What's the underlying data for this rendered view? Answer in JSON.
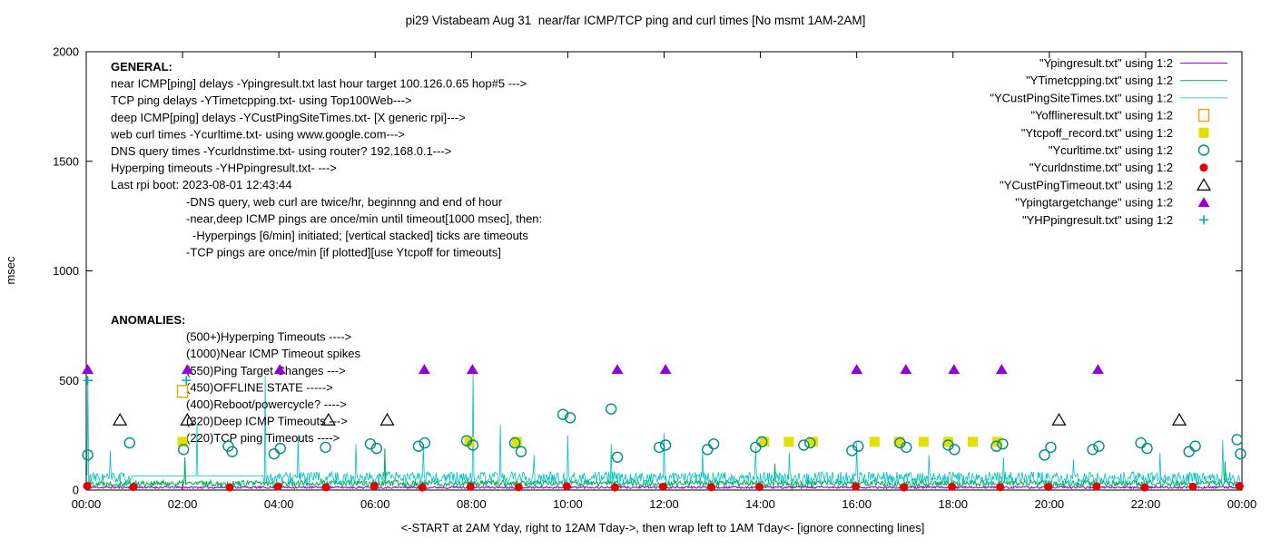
{
  "title": "pi29 Vistabeam Aug 31  near/far ICMP/TCP ping and curl times [No msmt 1AM-2AM]",
  "ylabel": "msec",
  "xlabel": "<-START at 2AM Yday, right to 12AM Tday->, then wrap left to 1AM Tday<- [ignore connecting lines]",
  "chart_data": {
    "type": "line",
    "x_range_hours": [
      0,
      24
    ],
    "x_ticks": [
      "00:00",
      "02:00",
      "04:00",
      "06:00",
      "08:00",
      "10:00",
      "12:00",
      "14:00",
      "16:00",
      "18:00",
      "20:00",
      "22:00",
      "00:00"
    ],
    "ylim": [
      0,
      2000
    ],
    "y_ticks": [
      0,
      500,
      1000,
      1500,
      2000
    ],
    "grid": false,
    "legend_position": "top-right",
    "series": [
      {
        "name": "\"Ypingresult.txt\" using 1:2",
        "style": "line",
        "color": "#9400d3",
        "stroke_width": 1.0,
        "synth": {
          "base": 12,
          "jitter": 5,
          "seed": 11,
          "spikes": []
        }
      },
      {
        "name": "\"YTimetcpping.txt\" using 1:2",
        "style": "line",
        "color": "#00b050",
        "stroke_width": 1.0,
        "synth": {
          "base": 30,
          "jitter": 14,
          "seed": 22,
          "spikes": [
            [
              2.05,
              150
            ],
            [
              6.2,
              190
            ],
            [
              14.3,
              120
            ],
            [
              23.65,
              130
            ]
          ]
        }
      },
      {
        "name": "\"YCustPingSiteTimes.txt\" using 1:2",
        "style": "line",
        "color": "#00c0c0",
        "stroke_width": 0.8,
        "synth": {
          "base": 55,
          "jitter": 28,
          "seed": 33,
          "holds": [
            [
              0.95,
              3.68,
              64
            ]
          ],
          "spikes": [
            [
              0.03,
              500
            ],
            [
              0.5,
              180
            ],
            [
              2.3,
              300
            ],
            [
              3.72,
              520
            ],
            [
              4.4,
              250
            ],
            [
              5.6,
              210
            ],
            [
              7.0,
              200
            ],
            [
              8.03,
              540
            ],
            [
              8.6,
              300
            ],
            [
              9.3,
              160
            ],
            [
              10.0,
              250
            ],
            [
              10.9,
              210
            ],
            [
              12.0,
              260
            ],
            [
              12.8,
              180
            ],
            [
              13.9,
              200
            ],
            [
              14.6,
              170
            ],
            [
              16.0,
              215
            ],
            [
              17.5,
              160
            ],
            [
              19.05,
              150
            ],
            [
              20.5,
              140
            ],
            [
              22.3,
              170
            ],
            [
              23.6,
              230
            ]
          ]
        }
      },
      {
        "name": "\"Yofflineresult.txt\" using 1:2",
        "style": "square-open",
        "color": "#e6a817",
        "points": [
          [
            2.0,
            450
          ]
        ]
      },
      {
        "name": "\"Ytcpoff_record.txt\" using 1:2",
        "style": "square-filled",
        "color": "#e3e000",
        "points": [
          [
            2.0,
            220
          ],
          [
            7.96,
            220
          ],
          [
            8.94,
            220
          ],
          [
            14.08,
            220
          ],
          [
            14.59,
            220
          ],
          [
            15.09,
            220
          ],
          [
            16.37,
            220
          ],
          [
            16.88,
            220
          ],
          [
            17.39,
            220
          ],
          [
            17.9,
            220
          ],
          [
            18.41,
            220
          ],
          [
            18.92,
            220
          ]
        ]
      },
      {
        "name": "\"Ycurltime.txt\" using 1:2",
        "style": "circle-open",
        "color": "#008b8b",
        "points": [
          [
            0.03,
            160
          ],
          [
            0.9,
            215
          ],
          [
            2.02,
            185
          ],
          [
            2.95,
            200
          ],
          [
            3.03,
            175
          ],
          [
            3.9,
            165
          ],
          [
            4.03,
            190
          ],
          [
            4.97,
            195
          ],
          [
            5.9,
            210
          ],
          [
            6.03,
            190
          ],
          [
            6.9,
            200
          ],
          [
            7.03,
            215
          ],
          [
            7.9,
            225
          ],
          [
            8.03,
            205
          ],
          [
            8.9,
            215
          ],
          [
            9.03,
            175
          ],
          [
            9.9,
            345
          ],
          [
            10.05,
            330
          ],
          [
            10.9,
            370
          ],
          [
            11.03,
            150
          ],
          [
            11.9,
            195
          ],
          [
            12.03,
            205
          ],
          [
            12.9,
            185
          ],
          [
            13.03,
            210
          ],
          [
            13.9,
            195
          ],
          [
            14.03,
            220
          ],
          [
            14.9,
            205
          ],
          [
            15.03,
            215
          ],
          [
            15.9,
            180
          ],
          [
            16.03,
            200
          ],
          [
            16.9,
            215
          ],
          [
            17.03,
            195
          ],
          [
            17.9,
            205
          ],
          [
            18.03,
            185
          ],
          [
            18.9,
            200
          ],
          [
            19.03,
            210
          ],
          [
            19.9,
            160
          ],
          [
            20.03,
            195
          ],
          [
            20.9,
            185
          ],
          [
            21.03,
            200
          ],
          [
            21.9,
            215
          ],
          [
            22.03,
            190
          ],
          [
            22.9,
            175
          ],
          [
            23.03,
            200
          ],
          [
            23.9,
            230
          ],
          [
            23.97,
            165
          ]
        ]
      },
      {
        "name": "\"Ycurldnstime.txt\" using 1:2",
        "style": "circle-filled",
        "color": "#e00000",
        "points": [
          [
            0.02,
            18
          ],
          [
            0.98,
            14
          ],
          [
            2.98,
            12
          ],
          [
            3.98,
            16
          ],
          [
            4.98,
            13
          ],
          [
            5.98,
            18
          ],
          [
            6.98,
            12
          ],
          [
            7.98,
            15
          ],
          [
            8.98,
            13
          ],
          [
            9.98,
            17
          ],
          [
            10.98,
            12
          ],
          [
            11.98,
            15
          ],
          [
            12.98,
            13
          ],
          [
            13.98,
            14
          ],
          [
            15.98,
            16
          ],
          [
            16.98,
            12
          ],
          [
            17.98,
            15
          ],
          [
            18.98,
            13
          ],
          [
            19.98,
            14
          ],
          [
            20.98,
            16
          ],
          [
            21.98,
            12
          ],
          [
            22.98,
            15
          ],
          [
            23.95,
            18
          ]
        ]
      },
      {
        "name": "\"YCustPingTimeout.txt\" using 1:2",
        "style": "triangle-open",
        "color": "#000000",
        "points": [
          [
            0.7,
            320
          ],
          [
            2.1,
            320
          ],
          [
            5.03,
            320
          ],
          [
            6.25,
            320
          ],
          [
            20.2,
            320
          ],
          [
            22.7,
            320
          ]
        ]
      },
      {
        "name": "\"Ypingtargetchange\" using 1:2",
        "style": "triangle-filled",
        "color": "#9400d3",
        "points": [
          [
            0.03,
            550
          ],
          [
            2.1,
            550
          ],
          [
            4.02,
            550
          ],
          [
            7.02,
            550
          ],
          [
            8.02,
            550
          ],
          [
            11.03,
            550
          ],
          [
            12.03,
            550
          ],
          [
            16.0,
            550
          ],
          [
            17.02,
            550
          ],
          [
            18.02,
            550
          ],
          [
            19.01,
            550
          ],
          [
            21.01,
            550
          ]
        ]
      },
      {
        "name": "\"YHPpingresult.txt\" using 1:2",
        "style": "plus",
        "color": "#00b0b0",
        "points": [
          [
            0.03,
            500
          ],
          [
            2.08,
            500
          ]
        ]
      }
    ]
  },
  "annotations": {
    "general": {
      "title": "GENERAL:",
      "lines": [
        {
          "text": "near ICMP[ping] delays -Ypingresult.txt last hour target 100.126.0.65 hop#5 --->",
          "indent": 0
        },
        {
          "text": "TCP ping delays -YTimetcpping.txt- using Top100Web--->",
          "indent": 0
        },
        {
          "text": "deep ICMP[ping] delays -YCustPingSiteTimes.txt- [X generic rpi]--->",
          "indent": 0
        },
        {
          "text": "web curl times -Ycurltime.txt- using www.google.com--->",
          "indent": 0
        },
        {
          "text": "DNS query times -Ycurldnstime.txt- using router? 192.168.0.1--->",
          "indent": 0
        },
        {
          "text": "Hyperping timeouts -YHPpingresult.txt- --->",
          "indent": 0
        },
        {
          "text": "Last rpi boot: 2023-08-01 12:43:44",
          "indent": 0
        },
        {
          "text": "-DNS query, web curl are twice/hr, beginnng and end of hour",
          "indent": 1
        },
        {
          "text": "-near,deep ICMP pings are once/min until timeout[1000 msec], then:",
          "indent": 1
        },
        {
          "text": "-Hyperpings [6/min] initiated; [vertical stacked] ticks are timeouts",
          "indent": 2
        },
        {
          "text": "-TCP pings are once/min [if plotted][use Ytcpoff for timeouts]",
          "indent": 1
        }
      ]
    },
    "anomalies": {
      "title": "ANOMALIES:",
      "lines": [
        {
          "text": "(500+)Hyperping Timeouts ---->",
          "indent": 1
        },
        {
          "text": "(1000)Near ICMP Timeout spikes",
          "indent": 1
        },
        {
          "text": "(550)Ping Target Changes --->",
          "indent": 1
        },
        {
          "text": "(450)OFFLINE STATE ----->",
          "indent": 1
        },
        {
          "text": "(400)Reboot/powercycle? ---->",
          "indent": 1
        },
        {
          "text": "(320)Deep ICMP Timeouts --->",
          "indent": 1
        },
        {
          "text": "(220)TCP ping Timeouts ---->",
          "indent": 1
        }
      ]
    }
  }
}
